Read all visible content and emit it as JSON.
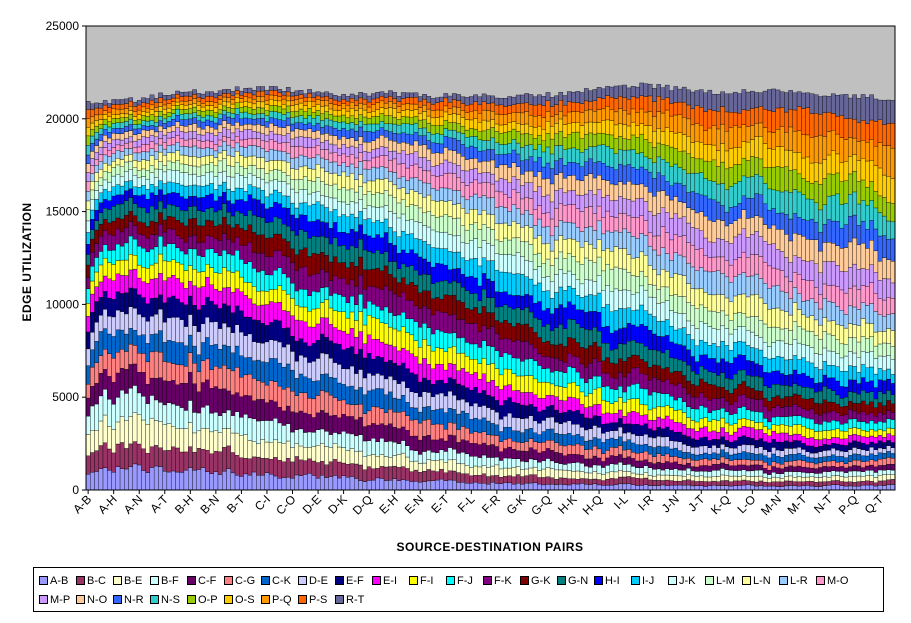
{
  "chart_data": {
    "type": "bar",
    "stacked": true,
    "ylabel": "EDGE UTILIZATION",
    "xlabel": "SOURCE-DESTINATION PAIRS",
    "ylim": [
      0,
      25000
    ],
    "yticks": [
      "0",
      "5000",
      "10000",
      "15000",
      "20000",
      "25000"
    ],
    "x_tick_labels": [
      "A-B",
      "A-H",
      "A-N",
      "A-T",
      "B-H",
      "B-N",
      "B-T",
      "C-I",
      "C-O",
      "D-E",
      "D-K",
      "D-Q",
      "E-H",
      "E-N",
      "E-T",
      "F-L",
      "F-R",
      "G-K",
      "G-Q",
      "H-K",
      "H-Q",
      "I-L",
      "I-R",
      "J-N",
      "J-T",
      "K-Q",
      "L-O",
      "M-N",
      "M-T",
      "N-T",
      "P-Q",
      "Q-T"
    ],
    "x_tick_step": 6,
    "n_pairs": 190,
    "plot_background": "#c0c0c0",
    "grid": false,
    "legend_position": "bottom",
    "edges": [
      "A-B",
      "B-C",
      "B-E",
      "B-F",
      "C-F",
      "C-G",
      "C-K",
      "D-E",
      "E-F",
      "E-I",
      "F-I",
      "F-J",
      "F-K",
      "G-K",
      "G-N",
      "H-I",
      "I-J",
      "J-K",
      "L-M",
      "L-N",
      "L-R",
      "M-O",
      "M-P",
      "N-O",
      "N-R",
      "N-S",
      "O-P",
      "O-S",
      "P-Q",
      "P-S",
      "R-T"
    ],
    "colors": [
      "#9999ff",
      "#993366",
      "#ffffcc",
      "#ccffff",
      "#660066",
      "#ff8080",
      "#0066cc",
      "#ccccff",
      "#000080",
      "#ff00ff",
      "#ffff00",
      "#00ffff",
      "#800080",
      "#800000",
      "#008080",
      "#0000ff",
      "#00ccff",
      "#ccffff",
      "#ccffcc",
      "#ffff99",
      "#99ccff",
      "#ff99cc",
      "#cc99ff",
      "#ffcc99",
      "#3366ff",
      "#33cccc",
      "#99cc00",
      "#ffcc00",
      "#ff9900",
      "#ff6600",
      "#666699"
    ],
    "total_approx": {
      "anchors": [
        [
          0,
          20900
        ],
        [
          10,
          21000
        ],
        [
          20,
          21400
        ],
        [
          30,
          21500
        ],
        [
          40,
          21700
        ],
        [
          50,
          21500
        ],
        [
          60,
          21300
        ],
        [
          70,
          21400
        ],
        [
          80,
          21200
        ],
        [
          90,
          21300
        ],
        [
          100,
          21200
        ],
        [
          110,
          21300
        ],
        [
          120,
          21700
        ],
        [
          130,
          21800
        ],
        [
          140,
          21600
        ],
        [
          150,
          21400
        ],
        [
          160,
          21500
        ],
        [
          170,
          21300
        ],
        [
          180,
          21200
        ],
        [
          189,
          21100
        ]
      ]
    }
  }
}
